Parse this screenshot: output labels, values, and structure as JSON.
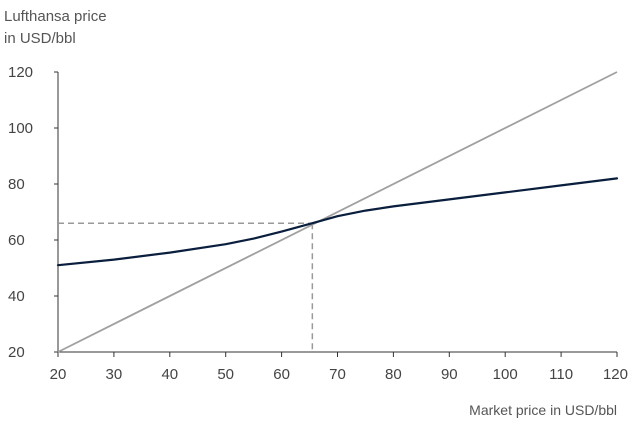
{
  "chart_data": {
    "type": "line",
    "title": "",
    "ylabel_lines": [
      "Lufthansa price",
      "in USD/bbl"
    ],
    "xlabel": "Market price in USD/bbl",
    "xlim": [
      20,
      120
    ],
    "ylim": [
      20,
      120
    ],
    "x_ticks": [
      20,
      30,
      40,
      50,
      60,
      70,
      80,
      90,
      100,
      110,
      120
    ],
    "y_ticks": [
      20,
      40,
      60,
      80,
      100,
      120
    ],
    "grid": false,
    "series": [
      {
        "color": "#0a1e3d",
        "points": [
          [
            20,
            51
          ],
          [
            30,
            53
          ],
          [
            40,
            55.5
          ],
          [
            50,
            58.5
          ],
          [
            55,
            60.5
          ],
          [
            60,
            63
          ],
          [
            65.5,
            66
          ],
          [
            70,
            68.5
          ],
          [
            75,
            70.5
          ],
          [
            80,
            72
          ],
          [
            90,
            74.5
          ],
          [
            100,
            77
          ],
          [
            110,
            79.5
          ],
          [
            120,
            82
          ]
        ]
      },
      {
        "color": "#a0a0a0",
        "points": [
          [
            20,
            20
          ],
          [
            120,
            120
          ]
        ]
      }
    ],
    "reference_point": {
      "x": 65.5,
      "y": 66,
      "color": "#999999",
      "style": "dashed"
    }
  }
}
